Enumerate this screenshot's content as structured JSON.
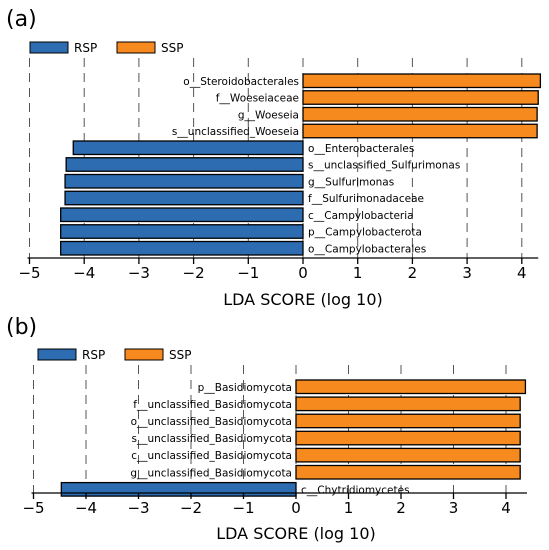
{
  "colors": {
    "RSP": "#2d6cb1",
    "SSP": "#f78a1e",
    "bar_edge": "#000000"
  },
  "chart_data": [
    {
      "panel": "(a)",
      "type": "bar",
      "orientation": "horizontal",
      "legend": [
        "RSP",
        "SSP"
      ],
      "legend_placement": "top-left",
      "xlabel": "LDA SCORE (log 10)",
      "xlim": [
        -5,
        4.3
      ],
      "xticks": [
        -5,
        -4,
        -3,
        -2,
        -1,
        0,
        1,
        2,
        3,
        4
      ],
      "xtick_labels": [
        "−5",
        "−4",
        "−3",
        "−2",
        "−1",
        "0",
        "1",
        "2",
        "3",
        "4"
      ],
      "grid": "vertical dashed",
      "bars": [
        {
          "label": "o__Steroidobacterales",
          "value": 4.34,
          "group": "SSP"
        },
        {
          "label": "f__Woeseiaceae",
          "value": 4.3,
          "group": "SSP"
        },
        {
          "label": "g__Woeseia",
          "value": 4.28,
          "group": "SSP"
        },
        {
          "label": "s__unclassified_Woeseia",
          "value": 4.28,
          "group": "SSP"
        },
        {
          "label": "o__Enterobacterales",
          "value": -4.2,
          "group": "RSP"
        },
        {
          "label": "s__unclassified_Sulfurimonas",
          "value": -4.33,
          "group": "RSP"
        },
        {
          "label": "g__Sulfurimonas",
          "value": -4.35,
          "group": "RSP"
        },
        {
          "label": "f__Sulfurimonadaceae",
          "value": -4.35,
          "group": "RSP"
        },
        {
          "label": "c__Campylobacteria",
          "value": -4.43,
          "group": "RSP"
        },
        {
          "label": "p__Campylobacterota",
          "value": -4.43,
          "group": "RSP"
        },
        {
          "label": "o__Campylobacterales",
          "value": -4.43,
          "group": "RSP"
        }
      ]
    },
    {
      "panel": "(b)",
      "type": "bar",
      "orientation": "horizontal",
      "legend": [
        "RSP",
        "SSP"
      ],
      "legend_placement": "top-left",
      "xlabel": "LDA SCORE (log 10)",
      "xlim": [
        -5,
        4.4
      ],
      "xticks": [
        -5,
        -4,
        -3,
        -2,
        -1,
        0,
        1,
        2,
        3,
        4
      ],
      "xtick_labels": [
        "−5",
        "−4",
        "−3",
        "−2",
        "−1",
        "0",
        "1",
        "2",
        "3",
        "4"
      ],
      "grid": "vertical dashed",
      "bars": [
        {
          "label": "p__Basidiomycota",
          "value": 4.37,
          "group": "SSP"
        },
        {
          "label": "f__unclassified_Basidiomycota",
          "value": 4.27,
          "group": "SSP"
        },
        {
          "label": "o__unclassified_Basidiomycota",
          "value": 4.27,
          "group": "SSP"
        },
        {
          "label": "s__unclassified_Basidiomycota",
          "value": 4.27,
          "group": "SSP"
        },
        {
          "label": "c__unclassified_Basidiomycota",
          "value": 4.27,
          "group": "SSP"
        },
        {
          "label": "g__unclassified_Basidiomycota",
          "value": 4.27,
          "group": "SSP"
        },
        {
          "label": "c__Chytridiomycetes",
          "value": -4.47,
          "group": "RSP"
        }
      ]
    }
  ]
}
